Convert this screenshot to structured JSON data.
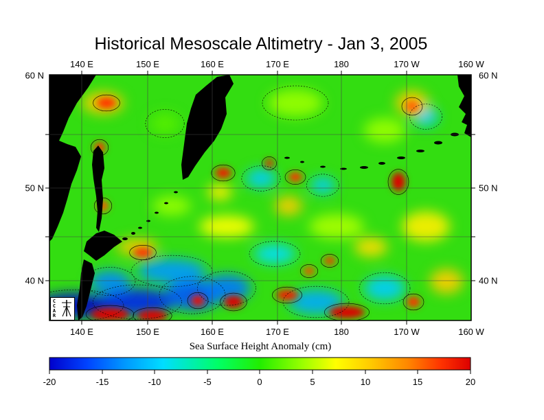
{
  "title": "Historical Mesoscale Altimetry - Jan 3, 2005",
  "map": {
    "lon_ticks": [
      "140 E",
      "150 E",
      "160 E",
      "170 E",
      "180",
      "170 W",
      "160 W"
    ],
    "lat_ticks": [
      "60 N",
      "50 N",
      "40 N"
    ],
    "lon_range": [
      135,
      200
    ],
    "lat_range": [
      36,
      60
    ],
    "grid": true
  },
  "colorbar": {
    "label": "Sea Surface Height Anomaly (cm)",
    "ticks": [
      "-20",
      "-15",
      "-10",
      "-5",
      "0",
      "5",
      "10",
      "15",
      "20"
    ],
    "range": [
      -20,
      20
    ],
    "colors": [
      "#0000cc",
      "#0044ff",
      "#0099ff",
      "#00ddff",
      "#00ff66",
      "#22ee00",
      "#99ff00",
      "#ffff00",
      "#ffcc00",
      "#ff8800",
      "#ff3300",
      "#dd0000"
    ]
  },
  "logo": {
    "text": "CCAR"
  },
  "colors": {
    "land": "#000000",
    "background": "#ffffff",
    "sea_base": "#33dd11"
  }
}
